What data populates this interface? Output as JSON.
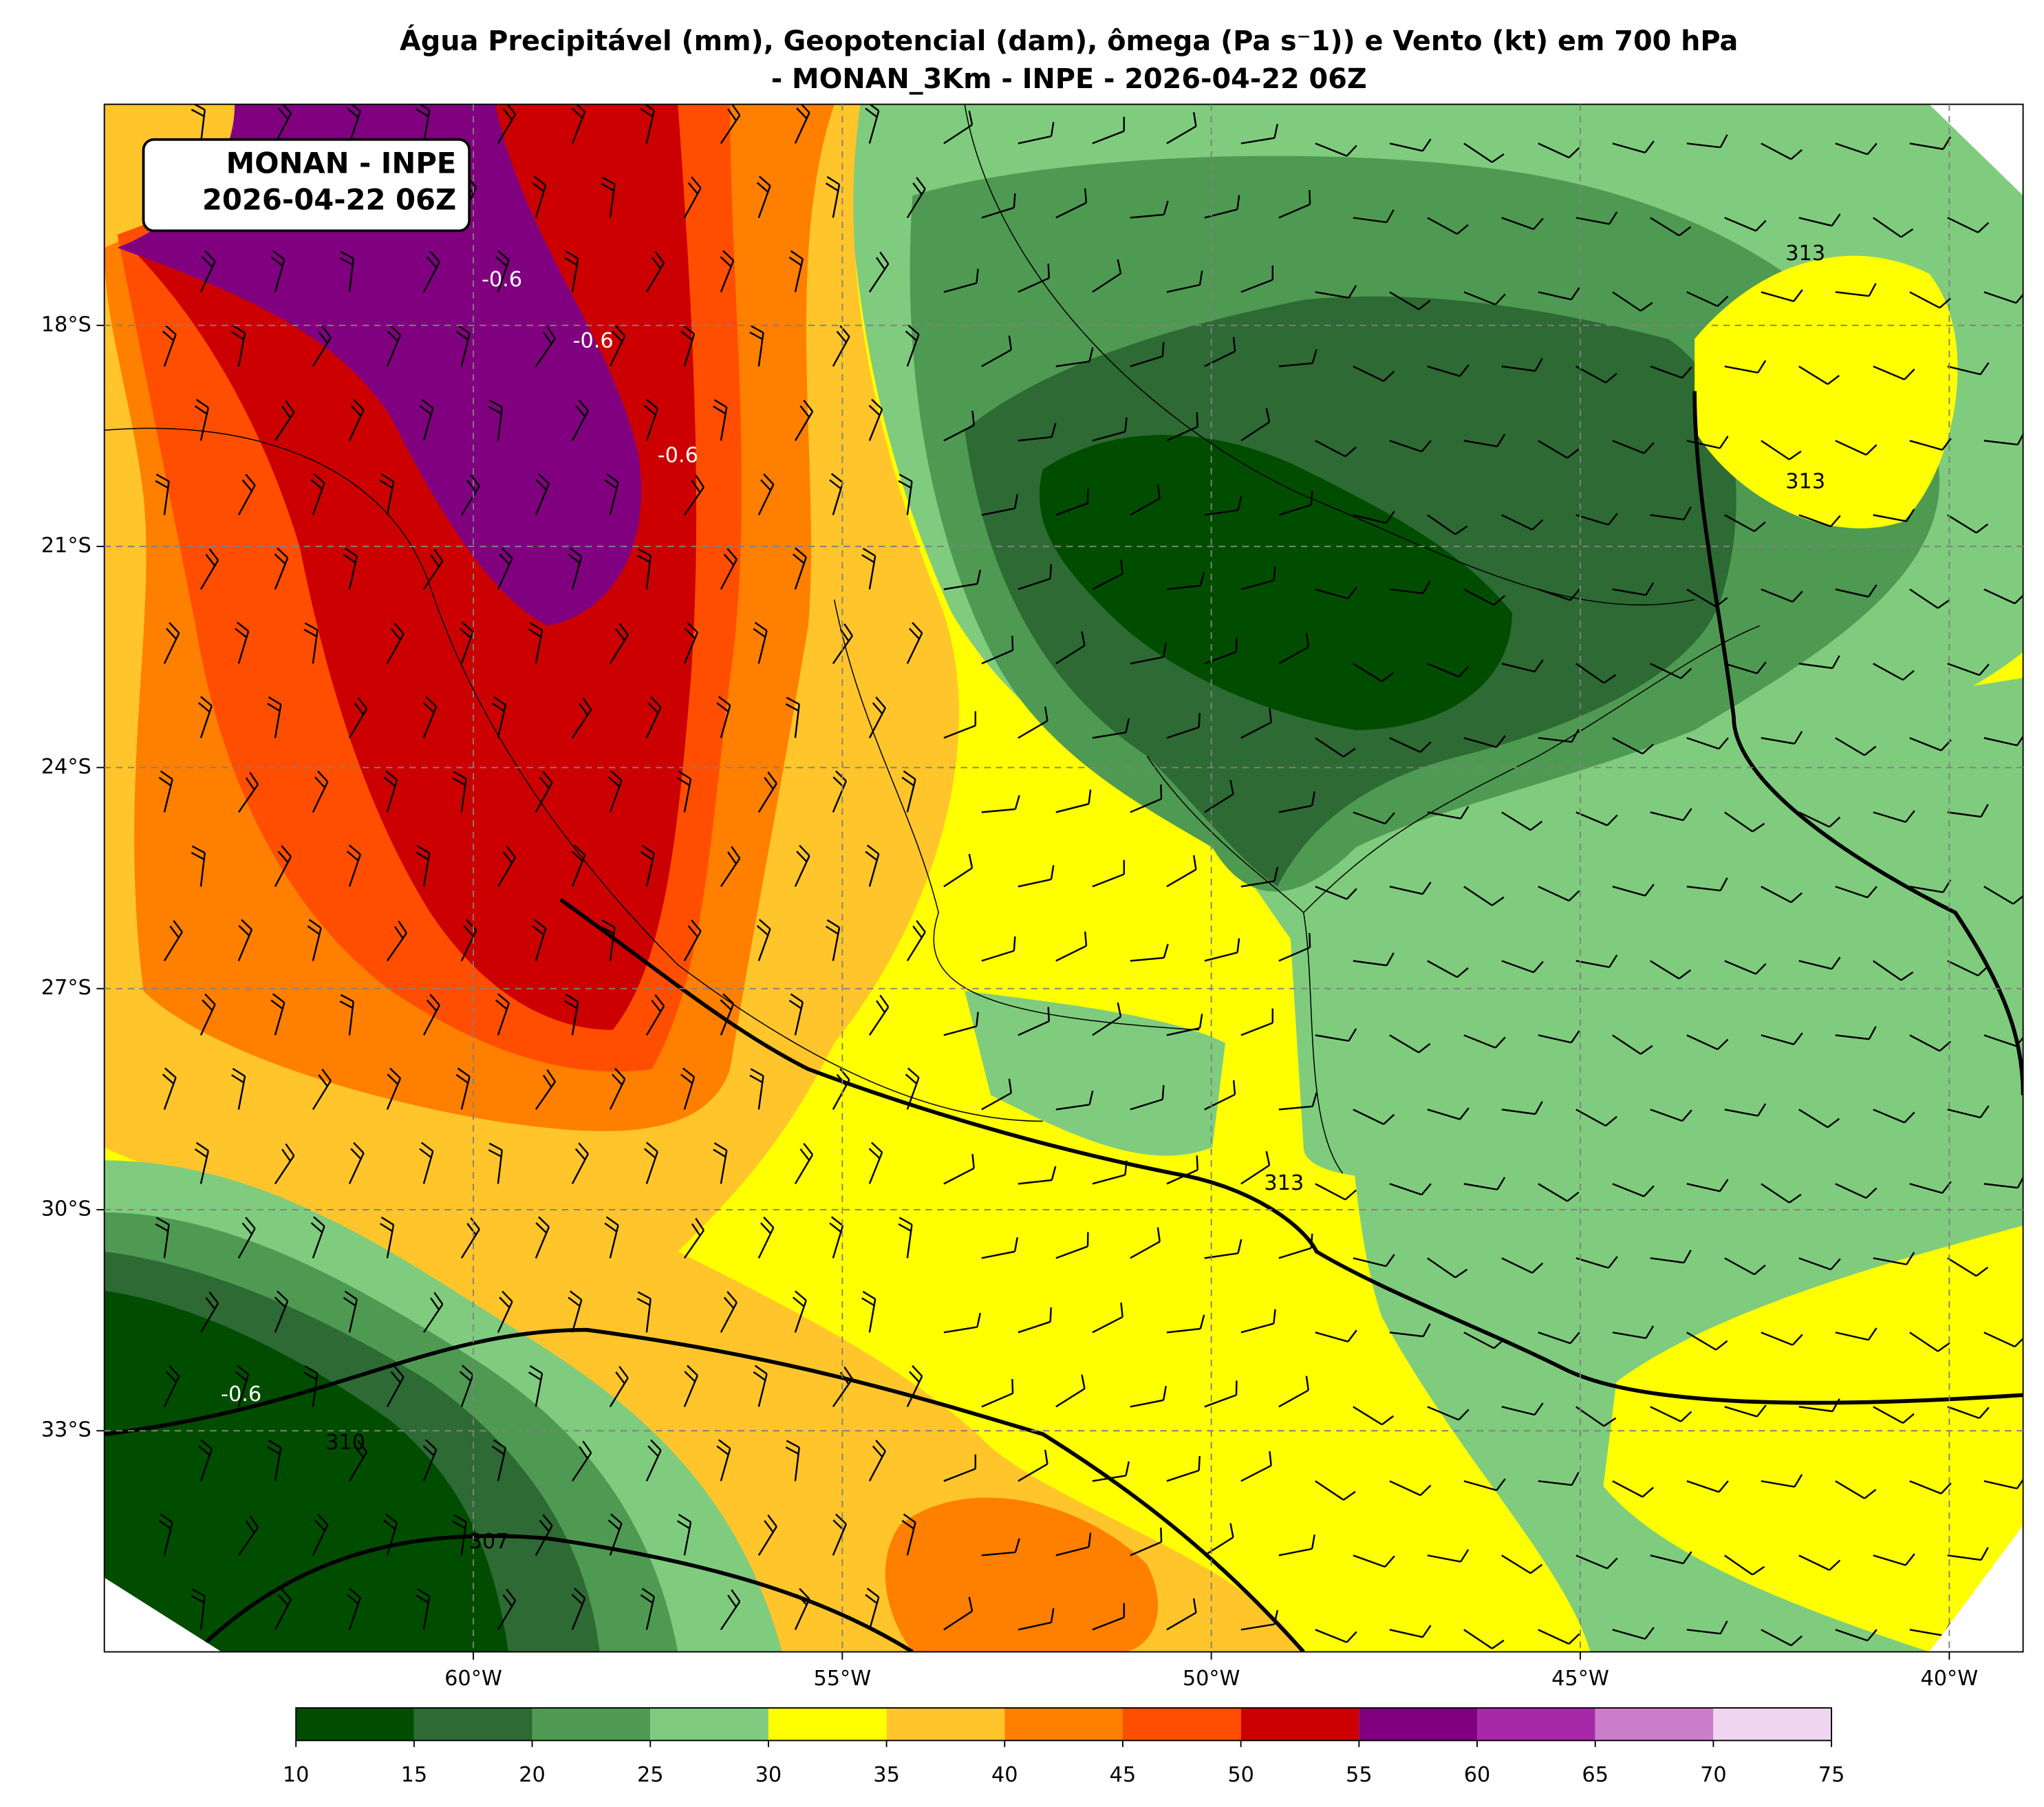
{
  "header": {
    "title_line1": "Água Precipitável (mm), Geopotencial (dam), ômega (Pa s⁻1)) e Vento (kt) em 700 hPa",
    "title_line2": "- MONAN_3Km - INPE - 2026-04-22 06Z"
  },
  "info_box": {
    "lines": [
      "MONAN - INPE",
      "2026-04-22 06Z"
    ]
  },
  "map": {
    "lon_lim": [
      -65,
      -39
    ],
    "lat_lim": [
      -36,
      -15
    ],
    "lon_ticks": [
      {
        "value": -60,
        "label": "60°W"
      },
      {
        "value": -55,
        "label": "55°W"
      },
      {
        "value": -50,
        "label": "50°W"
      },
      {
        "value": -45,
        "label": "45°W"
      },
      {
        "value": -40,
        "label": "40°W"
      }
    ],
    "lat_ticks": [
      {
        "value": -18,
        "label": "18°S"
      },
      {
        "value": -21,
        "label": "21°S"
      },
      {
        "value": -24,
        "label": "24°S"
      },
      {
        "value": -27,
        "label": "27°S"
      },
      {
        "value": -30,
        "label": "30°S"
      },
      {
        "value": -33,
        "label": "33°S"
      }
    ],
    "grid": true,
    "contour_labels": [
      "313",
      "310",
      "307",
      "-0.6"
    ]
  },
  "colorbar": {
    "levels": [
      10,
      15,
      20,
      25,
      30,
      35,
      40,
      45,
      50,
      55,
      60,
      65,
      70,
      75
    ],
    "colors": [
      "#004d00",
      "#2e6a34",
      "#4f9a52",
      "#80cc7e",
      "#ffff00",
      "#ffc52a",
      "#ff7f00",
      "#ff4e00",
      "#cc0000",
      "#800080",
      "#a829a8",
      "#cc7dcc",
      "#f0d5f0"
    ]
  }
}
